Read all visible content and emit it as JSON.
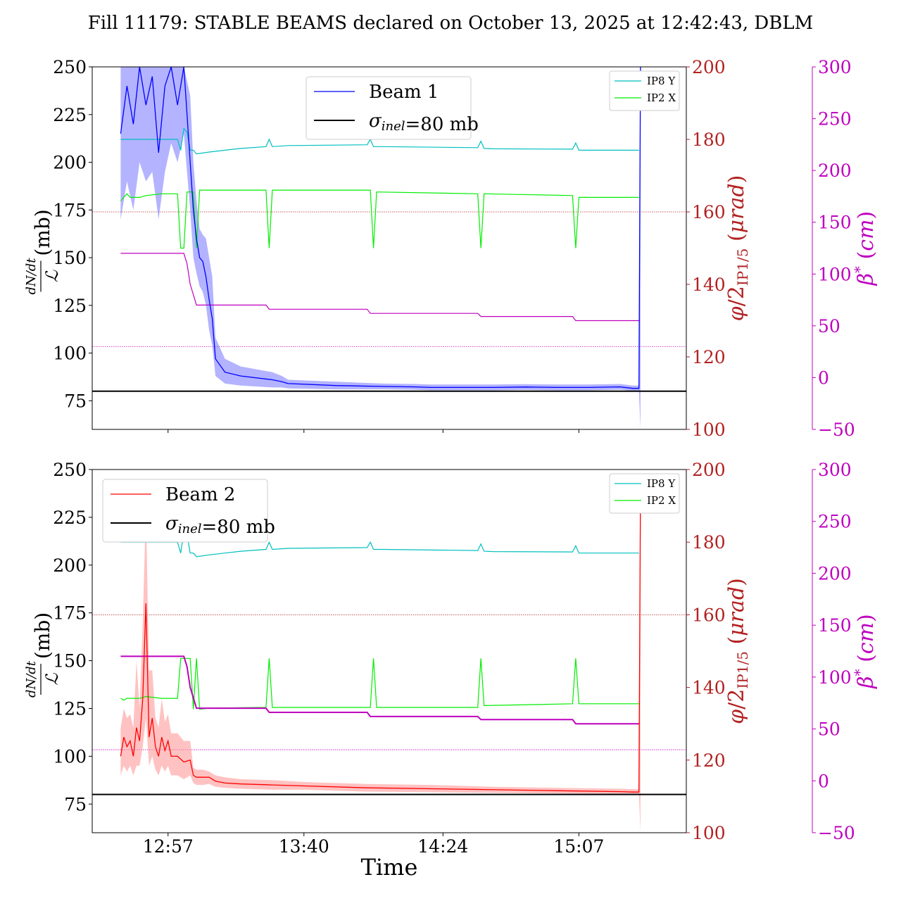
{
  "title": "Fill 11179: STABLE BEAMS declared on October 13, 2025 at 12:42:43, DBLM",
  "xlabel": "Time",
  "colors": {
    "beam1": "#0000ff",
    "beam1_band": "#8080ff",
    "beam2": "#ff0000",
    "beam2_band": "#ff9a9a",
    "ip8": "#00bfbf",
    "ip2": "#00ee00",
    "beta": "#bf00bf",
    "xing": "#b22222",
    "ref": "#000000"
  },
  "chart_data": [
    {
      "type": "line",
      "panel": "top",
      "ylabel_left": "dN/dt / ℒ (mb)",
      "ylabel_right1": "φ/2IP1/5 (μrad)",
      "ylabel_right2": "β* (cm)",
      "x_ticks": [
        "12:57",
        "13:40",
        "14:24",
        "15:07"
      ],
      "x_tick_minutes": [
        777,
        820,
        864,
        907
      ],
      "xlim_minutes": [
        753,
        941
      ],
      "ylim_left": [
        60,
        250
      ],
      "y_ticks_left": [
        75,
        100,
        125,
        150,
        175,
        200,
        225,
        250
      ],
      "ylim_right1": [
        100,
        200
      ],
      "y_ticks_right1": [
        100,
        120,
        140,
        160,
        180,
        200
      ],
      "ylim_right2": [
        -50,
        300
      ],
      "y_ticks_right2": [
        -50,
        0,
        50,
        100,
        150,
        200,
        250,
        300
      ],
      "legend_main": {
        "placement": "upper-center",
        "entries": [
          "Beam 1",
          "σinel=80 mb"
        ]
      },
      "legend_small": {
        "placement": "top-right",
        "entries": [
          "IP8 Y",
          "IP2 X"
        ]
      },
      "reference_line": {
        "label": "σinel=80 mb",
        "y": 80
      },
      "beam": {
        "name": "Beam 1",
        "x": [
          762,
          764,
          766,
          768,
          770,
          772,
          774,
          776,
          778,
          780,
          782,
          784,
          785,
          786,
          787,
          788,
          789,
          790,
          791,
          792,
          795,
          800,
          810,
          813,
          815,
          830,
          845,
          855,
          860,
          880,
          890,
          900,
          910,
          920,
          924,
          926,
          926.5
        ],
        "y": [
          215,
          240,
          220,
          250,
          230,
          245,
          205,
          240,
          250,
          230,
          250,
          200,
          175,
          160,
          150,
          148,
          140,
          128,
          118,
          97,
          90,
          88,
          86,
          85,
          84,
          83,
          82.5,
          82.3,
          82,
          82,
          82.2,
          82,
          82,
          82.3,
          81.5,
          81.5,
          250
        ],
        "band_upper": [
          250,
          250,
          250,
          250,
          250,
          250,
          250,
          250,
          250,
          250,
          250,
          235,
          200,
          180,
          165,
          162,
          160,
          150,
          140,
          108,
          97,
          93,
          90,
          88,
          86,
          85,
          84,
          83.8,
          83.5,
          83.5,
          83.7,
          83.5,
          83.5,
          83.8,
          83,
          83,
          250
        ],
        "band_lower": [
          170,
          190,
          175,
          200,
          190,
          195,
          170,
          195,
          210,
          200,
          215,
          175,
          150,
          142,
          135,
          132,
          125,
          112,
          104,
          88,
          84,
          83,
          82,
          82,
          81.5,
          81,
          81,
          80.8,
          80.5,
          80.5,
          80.7,
          80.5,
          80.5,
          80.8,
          80.2,
          80.2,
          60
        ]
      },
      "ip8_y": {
        "name": "IP8 Y",
        "x": [
          762,
          780,
          781,
          782,
          783,
          784,
          785,
          786,
          790,
          795,
          800,
          808,
          809,
          810,
          815,
          840,
          841,
          842,
          845,
          875,
          876,
          877,
          880,
          905,
          906,
          907,
          910,
          926
        ],
        "y": [
          180,
          180,
          177,
          183,
          182,
          177,
          177,
          176,
          176.5,
          177,
          177.5,
          178,
          180,
          178,
          178.3,
          178.5,
          180,
          178,
          178,
          177.7,
          179.5,
          177.5,
          177.4,
          177.3,
          179,
          177,
          177,
          177
        ]
      },
      "ip2_x": {
        "name": "IP2 X",
        "x": [
          762,
          763,
          764,
          765,
          766,
          768,
          770,
          775,
          780,
          781,
          782,
          783,
          785,
          786,
          787,
          790,
          808,
          809,
          810,
          841,
          842,
          843,
          875,
          876,
          877,
          905,
          906,
          907,
          926
        ],
        "y": [
          163,
          164,
          165,
          164,
          164,
          164,
          164.5,
          165,
          165,
          150,
          150,
          165.5,
          165.5,
          150,
          166,
          166,
          166,
          150,
          166,
          166,
          150,
          165.5,
          165,
          150,
          165,
          164.5,
          150,
          164,
          164
        ]
      },
      "beta": {
        "name": "β*",
        "x": [
          762,
          782,
          783,
          784,
          785,
          786,
          787,
          790,
          800,
          808,
          809,
          810,
          840,
          841,
          842,
          875,
          876,
          877,
          905,
          906,
          907,
          926
        ],
        "y": [
          120,
          120,
          110,
          90,
          80,
          70,
          70,
          70,
          70,
          70,
          66,
          66,
          66,
          62,
          62,
          62,
          59,
          59,
          59,
          55,
          55,
          55
        ]
      },
      "xing_ref": {
        "y": 160
      },
      "beta_ref": {
        "y": 30
      }
    },
    {
      "type": "line",
      "panel": "bottom",
      "ylabel_left": "dN/dt / ℒ (mb)",
      "ylabel_right1": "φ/2IP1/5 (μrad)",
      "ylabel_right2": "β* (cm)",
      "x_ticks": [
        "12:57",
        "13:40",
        "14:24",
        "15:07"
      ],
      "x_tick_minutes": [
        777,
        820,
        864,
        907
      ],
      "xlim_minutes": [
        753,
        941
      ],
      "ylim_left": [
        60,
        250
      ],
      "y_ticks_left": [
        75,
        100,
        125,
        150,
        175,
        200,
        225,
        250
      ],
      "ylim_right1": [
        100,
        200
      ],
      "y_ticks_right1": [
        100,
        120,
        140,
        160,
        180,
        200
      ],
      "ylim_right2": [
        -50,
        300
      ],
      "y_ticks_right2": [
        -50,
        0,
        50,
        100,
        150,
        200,
        250,
        300
      ],
      "legend_main": {
        "placement": "upper-left",
        "entries": [
          "Beam 2",
          "σinel=80 mb"
        ]
      },
      "legend_small": {
        "placement": "top-right",
        "entries": [
          "IP8 Y",
          "IP2 X"
        ]
      },
      "reference_line": {
        "label": "σinel=80 mb",
        "y": 80
      },
      "beam": {
        "name": "Beam 2",
        "x": [
          762,
          763,
          764,
          765,
          766,
          767,
          768,
          769,
          770,
          771,
          772,
          773,
          774,
          775,
          776,
          777,
          778,
          780,
          782,
          784,
          785,
          786,
          788,
          790,
          792,
          795,
          800,
          810,
          820,
          840,
          860,
          880,
          900,
          920,
          924,
          926,
          926.5
        ],
        "y": [
          100,
          110,
          105,
          108,
          100,
          115,
          108,
          130,
          180,
          110,
          120,
          105,
          100,
          110,
          103,
          108,
          100,
          100,
          97,
          98,
          90,
          89,
          89,
          89,
          87,
          86,
          85.5,
          85,
          84.5,
          83.5,
          83,
          82.5,
          82,
          81.5,
          81.3,
          81.3,
          240
        ],
        "band_upper": [
          115,
          125,
          120,
          122,
          115,
          150,
          125,
          170,
          230,
          145,
          145,
          120,
          115,
          130,
          118,
          122,
          112,
          112,
          108,
          108,
          94,
          93,
          93,
          92,
          90,
          89,
          88,
          87.5,
          86.5,
          85.5,
          85,
          84,
          83.5,
          83,
          82.8,
          82.8,
          250
        ],
        "band_lower": [
          90,
          95,
          92,
          95,
          90,
          95,
          95,
          105,
          120,
          95,
          100,
          93,
          90,
          95,
          92,
          95,
          90,
          90,
          88,
          90,
          86,
          85,
          85,
          85.5,
          84,
          83.5,
          83,
          82.5,
          82.5,
          81.5,
          81.2,
          80.8,
          80.5,
          80.2,
          80.2,
          80.2,
          60
        ]
      },
      "ip8_y": {
        "name": "IP8 Y",
        "x": [
          762,
          780,
          781,
          782,
          783,
          784,
          785,
          786,
          790,
          795,
          800,
          808,
          809,
          810,
          815,
          840,
          841,
          842,
          845,
          875,
          876,
          877,
          880,
          905,
          906,
          907,
          910,
          926
        ],
        "y": [
          180,
          180,
          177,
          183,
          182,
          177,
          177,
          176,
          176.5,
          177,
          177.5,
          178,
          180,
          178,
          178.3,
          178.5,
          180,
          178,
          178,
          177.7,
          179.5,
          177.5,
          177.4,
          177.3,
          179,
          177,
          177,
          177
        ]
      },
      "ip2_x": {
        "name": "IP2 X",
        "x": [
          762,
          763,
          764,
          766,
          768,
          770,
          775,
          780,
          781,
          784,
          785,
          786,
          787,
          790,
          808,
          809,
          810,
          841,
          842,
          843,
          875,
          876,
          877,
          905,
          906,
          907,
          926
        ],
        "y": [
          137,
          136.5,
          137,
          137,
          137,
          137.5,
          137,
          137,
          148,
          148,
          134,
          148,
          134,
          134.3,
          134.5,
          148,
          134.5,
          134.5,
          148,
          134.5,
          134.5,
          148,
          135,
          135.5,
          148,
          135.5,
          135.5
        ]
      },
      "beta": {
        "name": "β*",
        "x": [
          762,
          782,
          783,
          784,
          785,
          786,
          787,
          790,
          800,
          808,
          809,
          810,
          840,
          841,
          842,
          875,
          876,
          877,
          905,
          906,
          907,
          926
        ],
        "y": [
          120,
          120,
          110,
          90,
          80,
          70,
          70,
          70,
          70,
          70,
          66,
          66,
          66,
          62,
          62,
          62,
          59,
          59,
          59,
          55,
          55,
          55
        ]
      },
      "xing_ref": {
        "y": 160
      },
      "beta_ref": {
        "y": 30
      }
    }
  ]
}
